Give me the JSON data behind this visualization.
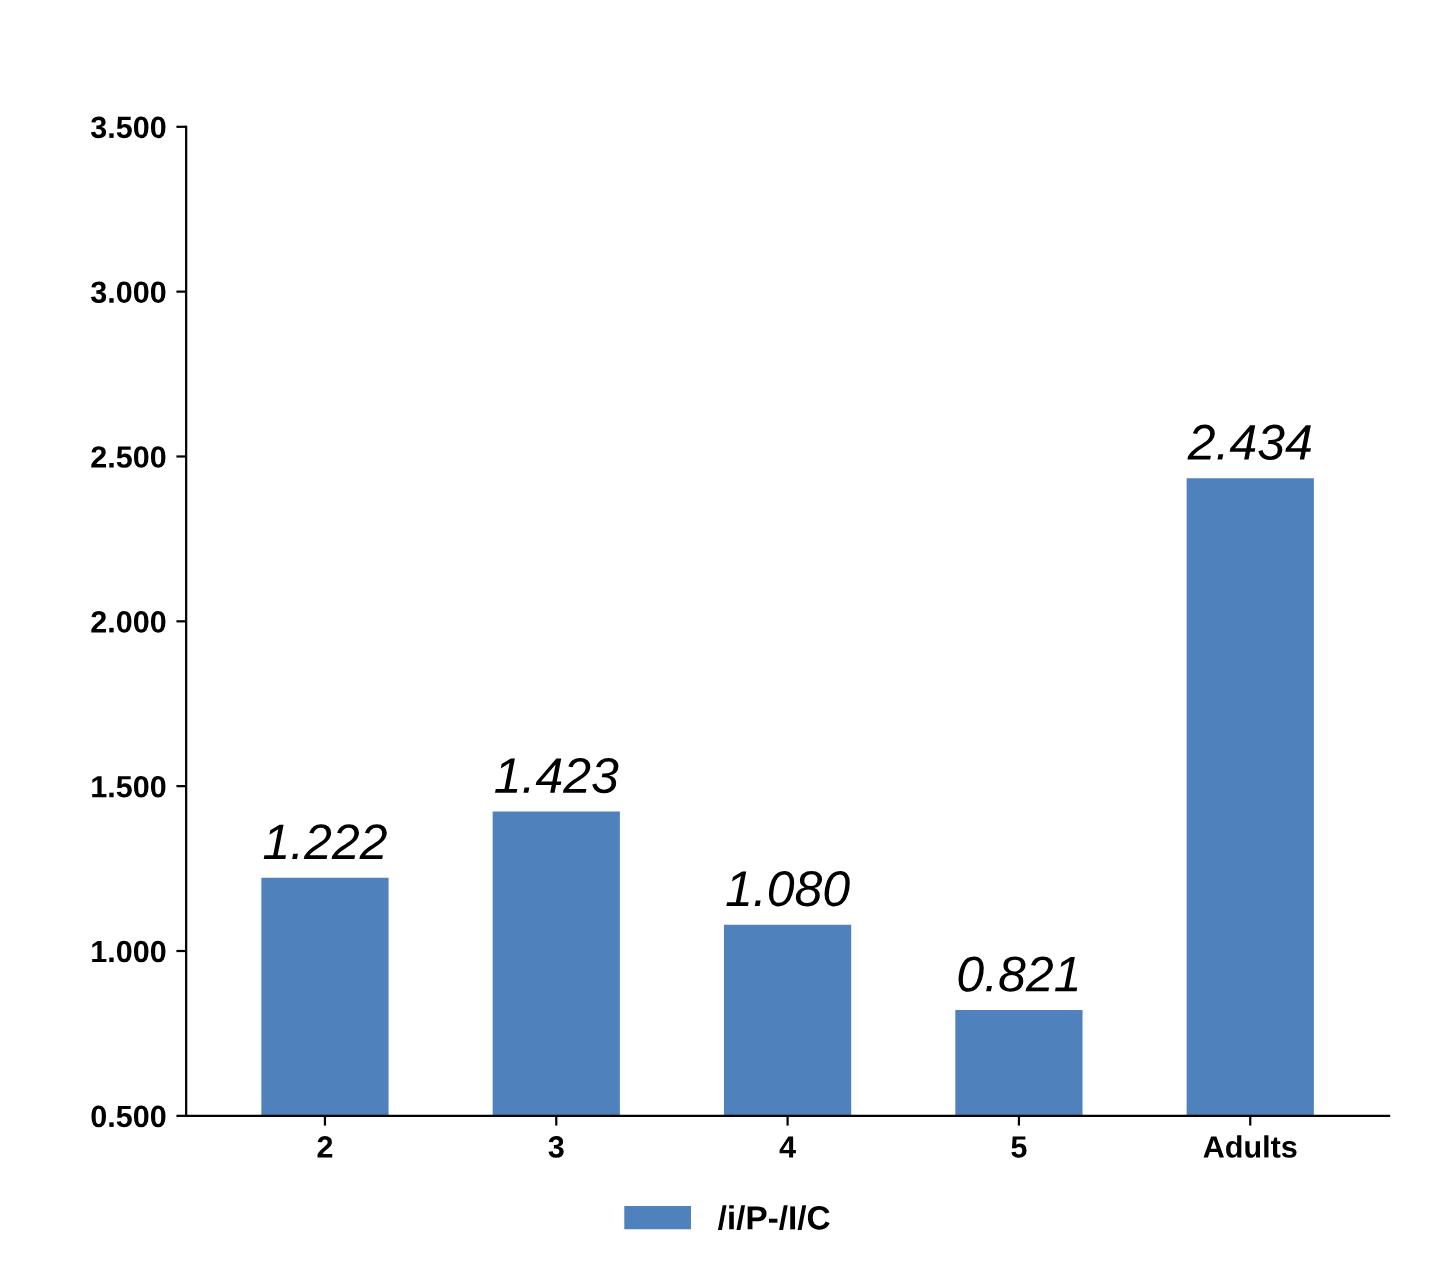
{
  "chart_data": {
    "type": "bar",
    "categories": [
      "2",
      "3",
      "4",
      "5",
      "Adults"
    ],
    "series": [
      {
        "name": "/i/P-/I/C",
        "color": "#4f81bd",
        "values": [
          1.222,
          1.423,
          1.08,
          0.821,
          2.434
        ]
      }
    ],
    "ylim": [
      0.5,
      3.5
    ],
    "yticks": [
      {
        "value": 0.5,
        "label": "0.500"
      },
      {
        "value": 1.0,
        "label": "1.000"
      },
      {
        "value": 1.5,
        "label": "1.500"
      },
      {
        "value": 2.0,
        "label": "2.000"
      },
      {
        "value": 2.5,
        "label": "2.500"
      },
      {
        "value": 3.0,
        "label": "3.000"
      },
      {
        "value": 3.5,
        "label": "3.500"
      }
    ],
    "value_labels": [
      "1.222",
      "1.423",
      "1.080",
      "0.821",
      "2.434"
    ],
    "legend": "bottom",
    "grid": false
  }
}
